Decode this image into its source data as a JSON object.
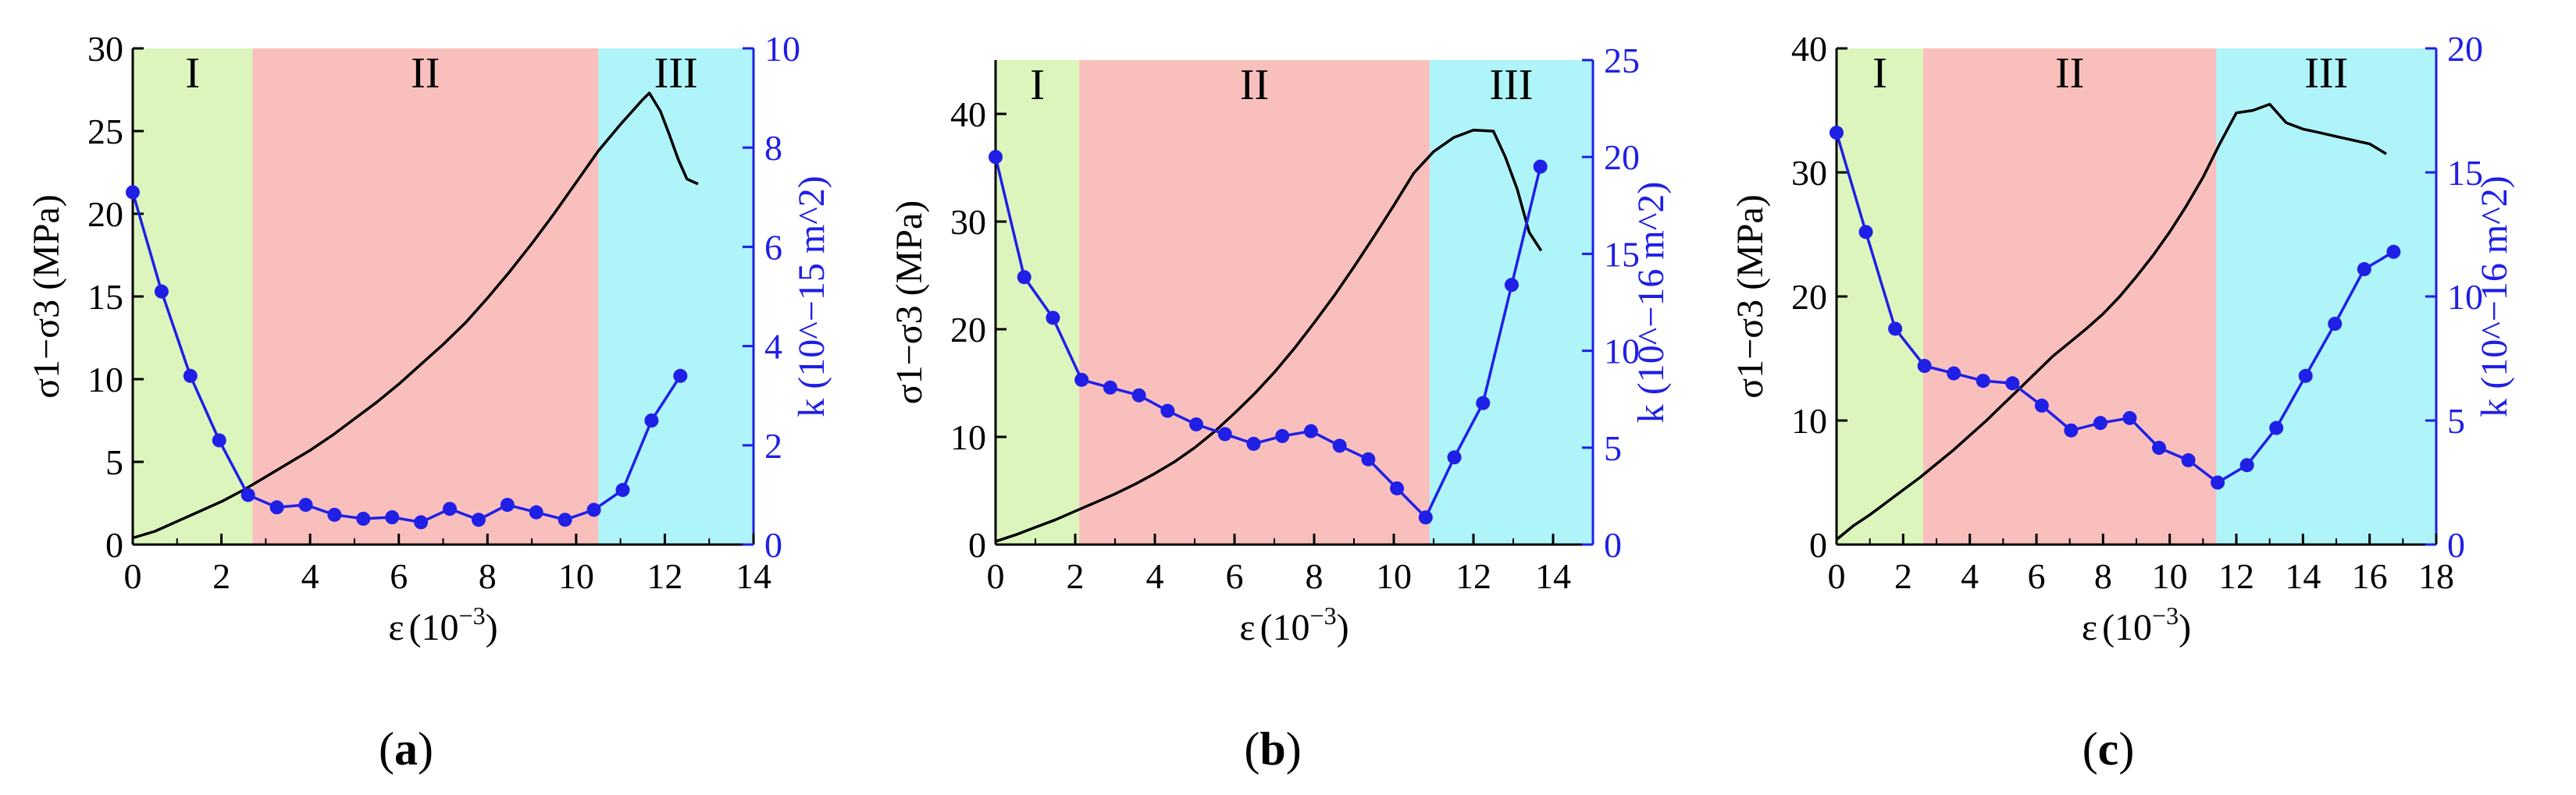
{
  "chart_data": [
    {
      "type": "line",
      "panel_label": "a",
      "xlabel": "ε",
      "xunit": "(10",
      "xunit_exp": "−3",
      "xunit_close": ")",
      "xlim": [
        0,
        14
      ],
      "xticks": [
        0,
        2,
        4,
        6,
        8,
        10,
        12,
        14
      ],
      "ylabel_left": "σ1−σ3 (MPa)",
      "ylim_left": [
        0,
        30
      ],
      "yticks_left": [
        0,
        5,
        10,
        15,
        20,
        25,
        30
      ],
      "ylabel_right": "k (10^−15 m^2)",
      "yright_exp": "−15",
      "ylim_right": [
        0,
        10
      ],
      "yticks_right": [
        0,
        2,
        4,
        6,
        8,
        10
      ],
      "stages": [
        {
          "label": "I",
          "from": 0,
          "to": 2.7,
          "color": "#dcf5bc"
        },
        {
          "label": "II",
          "from": 2.7,
          "to": 10.5,
          "color": "#f9bfbd"
        },
        {
          "label": "III",
          "from": 10.5,
          "to": 14,
          "color": "#aef4f8"
        }
      ],
      "series": [
        {
          "name": "stress",
          "axis": "left",
          "color": "#000000",
          "x": [
            0,
            0.5,
            1,
            1.5,
            2,
            2.5,
            3,
            3.5,
            4,
            4.5,
            5,
            5.5,
            6,
            6.5,
            7,
            7.5,
            8,
            8.5,
            9,
            9.5,
            10,
            10.5,
            11,
            11.5,
            11.65,
            11.9,
            12.1,
            12.3,
            12.5,
            12.75
          ],
          "y": [
            0.4,
            0.8,
            1.4,
            2.0,
            2.6,
            3.3,
            4.1,
            4.9,
            5.7,
            6.6,
            7.6,
            8.6,
            9.7,
            10.9,
            12.1,
            13.4,
            14.9,
            16.5,
            18.2,
            20.0,
            21.9,
            23.8,
            25.4,
            26.9,
            27.3,
            26.2,
            24.8,
            23.3,
            22.1,
            21.8
          ]
        },
        {
          "name": "permeability",
          "axis": "right",
          "color": "#1f1fe6",
          "x": [
            0,
            0.65,
            1.3,
            1.95,
            2.6,
            3.25,
            3.9,
            4.55,
            5.2,
            5.85,
            6.5,
            7.15,
            7.8,
            8.45,
            9.1,
            9.75,
            10.4,
            11.05,
            11.7,
            12.35
          ],
          "y": [
            7.1,
            5.1,
            3.4,
            2.1,
            1.0,
            0.75,
            0.8,
            0.6,
            0.52,
            0.55,
            0.45,
            0.72,
            0.5,
            0.8,
            0.65,
            0.5,
            0.7,
            1.1,
            2.5,
            3.4
          ]
        }
      ]
    },
    {
      "type": "line",
      "panel_label": "b",
      "xlabel": "ε",
      "xunit": "(10",
      "xunit_exp": "−3",
      "xunit_close": ")",
      "xlim": [
        0,
        15
      ],
      "xticks": [
        0,
        2,
        4,
        6,
        8,
        10,
        12,
        14
      ],
      "ylabel_left": "σ1−σ3 (MPa)",
      "ylim_left": [
        0,
        45
      ],
      "yticks_left": [
        0,
        10,
        20,
        30,
        40
      ],
      "ylabel_right": "k (10^−16 m^2)",
      "yright_exp": "−16",
      "ylim_right": [
        0,
        25
      ],
      "yticks_right": [
        0,
        5,
        10,
        15,
        20,
        25
      ],
      "stages": [
        {
          "label": "I",
          "from": 0,
          "to": 2.1,
          "color": "#dcf5bc"
        },
        {
          "label": "II",
          "from": 2.1,
          "to": 10.9,
          "color": "#f9bfbd"
        },
        {
          "label": "III",
          "from": 10.9,
          "to": 15,
          "color": "#aef4f8"
        }
      ],
      "series": [
        {
          "name": "stress",
          "axis": "left",
          "color": "#000000",
          "x": [
            0,
            0.5,
            1,
            1.5,
            2,
            2.5,
            3,
            3.5,
            4,
            4.5,
            5,
            5.5,
            6,
            6.5,
            7,
            7.5,
            8,
            8.5,
            9,
            9.5,
            10,
            10.5,
            11,
            11.5,
            12,
            12.5,
            12.8,
            13.1,
            13.4,
            13.7
          ],
          "y": [
            0.3,
            0.9,
            1.6,
            2.3,
            3.1,
            3.9,
            4.7,
            5.6,
            6.6,
            7.7,
            9.0,
            10.5,
            12.2,
            14.0,
            16.0,
            18.2,
            20.6,
            23.1,
            25.8,
            28.6,
            31.5,
            34.5,
            36.5,
            37.8,
            38.5,
            38.4,
            36.0,
            33.0,
            29.0,
            27.3
          ]
        },
        {
          "name": "permeability",
          "axis": "right",
          "color": "#1f1fe6",
          "x": [
            0,
            0.72,
            1.44,
            2.16,
            2.88,
            3.6,
            4.32,
            5.04,
            5.76,
            6.48,
            7.2,
            7.92,
            8.64,
            9.36,
            10.08,
            10.8,
            11.52,
            12.24,
            12.96,
            13.68
          ],
          "y": [
            20.0,
            13.8,
            11.7,
            8.5,
            8.1,
            7.7,
            6.9,
            6.2,
            5.7,
            5.2,
            5.6,
            5.85,
            5.1,
            4.4,
            2.9,
            1.4,
            4.5,
            7.3,
            13.4,
            19.5
          ]
        }
      ]
    },
    {
      "type": "line",
      "panel_label": "c",
      "xlabel": "ε",
      "xunit": "(10",
      "xunit_exp": "−3",
      "xunit_close": ")",
      "xlim": [
        0,
        18
      ],
      "xticks": [
        0,
        2,
        4,
        6,
        8,
        10,
        12,
        14,
        16,
        18
      ],
      "ylabel_left": "σ1−σ3 (MPa)",
      "ylim_left": [
        0,
        40
      ],
      "yticks_left": [
        0,
        10,
        20,
        30,
        40
      ],
      "ylabel_right": "k (10^−16 m^2)",
      "yright_exp": "−16",
      "ylim_right": [
        0,
        20
      ],
      "yticks_right": [
        0,
        5,
        10,
        15,
        20
      ],
      "stages": [
        {
          "label": "I",
          "from": 0,
          "to": 2.6,
          "color": "#dcf5bc"
        },
        {
          "label": "II",
          "from": 2.6,
          "to": 11.4,
          "color": "#f9bfbd"
        },
        {
          "label": "III",
          "from": 11.4,
          "to": 18,
          "color": "#aef4f8"
        }
      ],
      "series": [
        {
          "name": "stress",
          "axis": "left",
          "color": "#000000",
          "x": [
            0,
            0.5,
            1,
            1.5,
            2,
            2.5,
            3,
            3.5,
            4,
            4.5,
            5,
            5.5,
            6,
            6.5,
            7,
            7.5,
            8,
            8.5,
            9,
            9.5,
            10,
            10.5,
            11,
            11.5,
            12,
            12.5,
            13,
            13.5,
            14,
            14.5,
            15,
            15.5,
            16,
            16.5
          ],
          "y": [
            0.4,
            1.5,
            2.4,
            3.4,
            4.4,
            5.4,
            6.5,
            7.6,
            8.8,
            10.0,
            11.3,
            12.6,
            13.9,
            15.2,
            16.3,
            17.4,
            18.6,
            20.0,
            21.6,
            23.3,
            25.2,
            27.3,
            29.6,
            32.3,
            34.8,
            35.0,
            35.5,
            34.0,
            33.5,
            33.2,
            32.9,
            32.6,
            32.3,
            31.5
          ]
        },
        {
          "name": "permeability",
          "axis": "right",
          "color": "#1f1fe6",
          "x": [
            0,
            0.88,
            1.76,
            2.64,
            3.52,
            4.4,
            5.28,
            6.16,
            7.04,
            7.92,
            8.8,
            9.68,
            10.56,
            11.44,
            12.32,
            13.2,
            14.08,
            14.96,
            15.84,
            16.72
          ],
          "y": [
            16.6,
            12.6,
            8.7,
            7.2,
            6.9,
            6.6,
            6.5,
            5.6,
            4.6,
            4.9,
            5.1,
            3.9,
            3.4,
            2.5,
            3.2,
            4.7,
            6.8,
            8.9,
            11.1,
            11.8
          ]
        }
      ]
    }
  ]
}
